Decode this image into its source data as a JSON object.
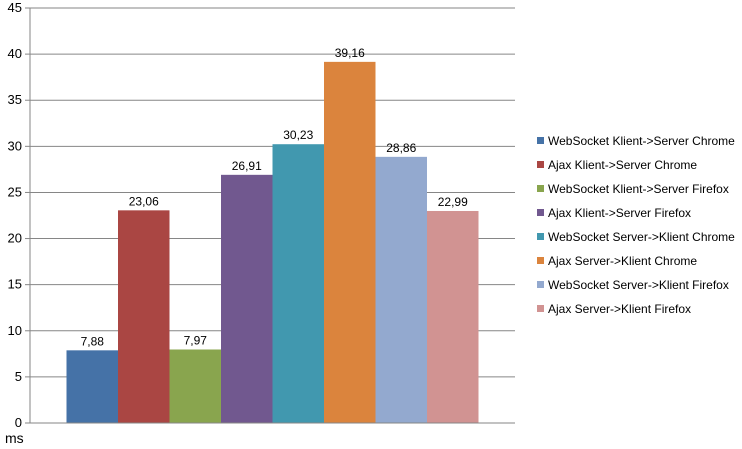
{
  "chart_data": {
    "type": "bar",
    "title": "",
    "xlabel": "",
    "ylabel": "ms",
    "ylim": [
      0,
      45
    ],
    "yticks": [
      0,
      5,
      10,
      15,
      20,
      25,
      30,
      35,
      40,
      45
    ],
    "grid": true,
    "legend_position": "right",
    "series": [
      {
        "name": "WebSocket Klient->Server Chrome",
        "value": 7.88,
        "label": "7,88",
        "color": "#4572a7"
      },
      {
        "name": "Ajax Klient->Server Chrome",
        "value": 23.06,
        "label": "23,06",
        "color": "#aa4643"
      },
      {
        "name": "WebSocket Klient->Server Firefox",
        "value": 7.97,
        "label": "7,97",
        "color": "#89a54e"
      },
      {
        "name": "Ajax Klient->Server Firefox",
        "value": 26.91,
        "label": "26,91",
        "color": "#71588f"
      },
      {
        "name": "WebSocket Server->Klient Chrome",
        "value": 30.23,
        "label": "30,23",
        "color": "#4198af"
      },
      {
        "name": "Ajax Server->Klient Chrome",
        "value": 39.16,
        "label": "39,16",
        "color": "#db843d"
      },
      {
        "name": "WebSocket Server->Klient Firefox",
        "value": 28.86,
        "label": "28,86",
        "color": "#93a9cf"
      },
      {
        "name": "Ajax Server->Klient Firefox",
        "value": 22.99,
        "label": "22,99",
        "color": "#d19392"
      }
    ]
  }
}
